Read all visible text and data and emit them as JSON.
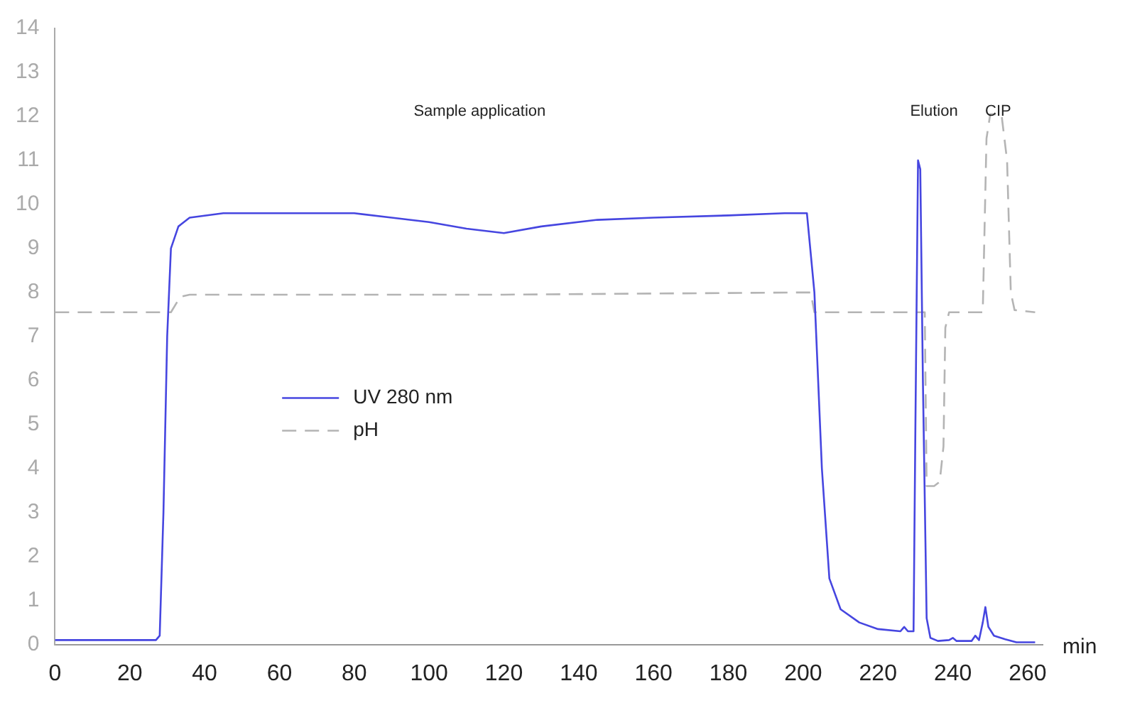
{
  "chart_data": {
    "type": "line",
    "xlabel": "min",
    "annotations": [
      "Sample application",
      "Elution",
      "CIP"
    ],
    "series": [
      {
        "name": "UV 280 nm",
        "color": "#4646e0",
        "line_style": "solid",
        "x": [
          0,
          27,
          28,
          29,
          30,
          31,
          33,
          36,
          45,
          60,
          80,
          90,
          100,
          110,
          120,
          130,
          145,
          160,
          180,
          195,
          201,
          203,
          205,
          207,
          210,
          215,
          220,
          226,
          227,
          228,
          229.5,
          230,
          230.7,
          231.3,
          232,
          233,
          234,
          236,
          239,
          240,
          241,
          245,
          246,
          247,
          248,
          248.7,
          249.5,
          251,
          254,
          257,
          262
        ],
        "values": [
          0.1,
          0.1,
          0.2,
          3,
          7,
          9,
          9.5,
          9.7,
          9.8,
          9.8,
          9.8,
          9.7,
          9.6,
          9.45,
          9.35,
          9.5,
          9.65,
          9.7,
          9.75,
          9.8,
          9.8,
          8,
          4,
          1.5,
          0.8,
          0.5,
          0.35,
          0.3,
          0.4,
          0.3,
          0.3,
          5,
          11,
          10.8,
          6,
          0.6,
          0.15,
          0.08,
          0.1,
          0.15,
          0.08,
          0.08,
          0.2,
          0.1,
          0.5,
          0.85,
          0.4,
          0.2,
          0.12,
          0.05,
          0.05
        ]
      },
      {
        "name": "pH",
        "color": "#b4b4b4",
        "line_style": "dashed",
        "x": [
          0,
          31,
          33.5,
          36,
          60,
          120,
          200,
          202,
          203,
          232.5,
          233,
          235,
          236.5,
          237.5,
          238,
          239,
          248,
          249,
          250,
          253,
          254.5,
          255.5,
          256.5,
          262
        ],
        "values": [
          7.55,
          7.55,
          7.9,
          7.95,
          7.95,
          7.95,
          8.0,
          8.0,
          7.55,
          7.55,
          3.6,
          3.6,
          3.7,
          4.5,
          7.2,
          7.55,
          7.55,
          11.5,
          12.05,
          12.05,
          11,
          8,
          7.6,
          7.55
        ]
      }
    ],
    "xlim": [
      0,
      264
    ],
    "xticks": [
      0,
      20,
      40,
      60,
      80,
      100,
      120,
      140,
      160,
      180,
      200,
      220,
      240,
      260
    ],
    "ylim": [
      0,
      14
    ],
    "yticks": [
      0,
      1,
      2,
      3,
      4,
      5,
      6,
      7,
      8,
      9,
      10,
      11,
      12,
      13,
      14
    ],
    "grid": false,
    "legend": "left",
    "marker": "none"
  }
}
